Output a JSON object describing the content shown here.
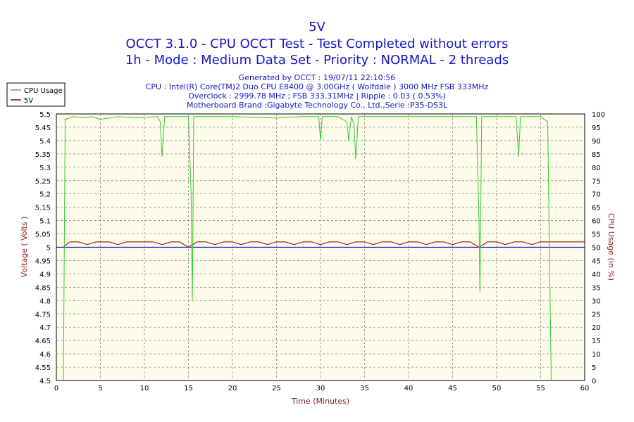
{
  "chart_data": {
    "type": "line",
    "title": "5V",
    "subtitle_1": "OCCT 3.1.0 - CPU OCCT Test - Test Completed without errors",
    "subtitle_2": "1h - Mode : Medium Data Set - Priority : NORMAL - 2 threads",
    "info": [
      "Generated by OCCT : 19/07/11 22:10:56",
      "CPU : Intel(R) Core(TM)2 Duo CPU E8400 @ 3.00GHz ( Wolfdale ) 3000 MHz FSB 333MHz",
      "Overclock : 2999.78 MHz ; FSB 333.31MHz | Ripple : 0.03 ( 0.53%)",
      "Motherboard Brand :Gigabyte Technology Co., Ltd.,Serie :P35-DS3L"
    ],
    "xlabel": "Time (Minutes)",
    "ylabel_left": "Voltage ( Volts )",
    "ylabel_right": "CPU Usage (in %)",
    "xlim": [
      0,
      60
    ],
    "ylim_left": [
      4.5,
      5.5
    ],
    "ylim_right": [
      0,
      100
    ],
    "x_ticks": [
      "0",
      "5",
      "10",
      "15",
      "20",
      "25",
      "30",
      "35",
      "40",
      "45",
      "50",
      "55",
      "60"
    ],
    "y_left_ticks": [
      "4.5",
      "4.55",
      "4.6",
      "4.65",
      "4.7",
      "4.75",
      "4.8",
      "4.85",
      "4.9",
      "4.95",
      "5",
      "5.05",
      "5.1",
      "5.15",
      "5.2",
      "5.25",
      "5.3",
      "5.35",
      "5.4",
      "5.45",
      "5.5"
    ],
    "y_right_ticks": [
      "0",
      "5",
      "10",
      "15",
      "20",
      "25",
      "30",
      "35",
      "40",
      "45",
      "50",
      "55",
      "60",
      "65",
      "70",
      "75",
      "80",
      "85",
      "90",
      "95",
      "100"
    ],
    "grid": true,
    "legend_position": "top-left",
    "colors": {
      "cpu": "#33cc33",
      "voltage": "#8b0000",
      "reference": "#0000cc",
      "plot_bg": "#fdfbe9",
      "title": "#1515c8",
      "axis_label": "#8b1a1a"
    },
    "reference_line": {
      "value": 5.0
    },
    "series": [
      {
        "name": "CPU Usage",
        "axis": "right",
        "points": [
          [
            0.8,
            0
          ],
          [
            1.0,
            98
          ],
          [
            2,
            99
          ],
          [
            3,
            98.5
          ],
          [
            4,
            99
          ],
          [
            5,
            98
          ],
          [
            7,
            99
          ],
          [
            9,
            98.5
          ],
          [
            11.5,
            99
          ],
          [
            11.8,
            97
          ],
          [
            12.0,
            84
          ],
          [
            12.3,
            99
          ],
          [
            15,
            99
          ],
          [
            15.3,
            70
          ],
          [
            15.45,
            30
          ],
          [
            15.6,
            99
          ],
          [
            20,
            99
          ],
          [
            25,
            98.5
          ],
          [
            28,
            99
          ],
          [
            29.8,
            99
          ],
          [
            30.0,
            90
          ],
          [
            30.2,
            99
          ],
          [
            31,
            99
          ],
          [
            32,
            99
          ],
          [
            33.0,
            97
          ],
          [
            33.2,
            90
          ],
          [
            33.5,
            99
          ],
          [
            33.8,
            96
          ],
          [
            34.0,
            83
          ],
          [
            34.3,
            99
          ],
          [
            38,
            99
          ],
          [
            42,
            99
          ],
          [
            46,
            99
          ],
          [
            47.7,
            99
          ],
          [
            48.0,
            60
          ],
          [
            48.1,
            33
          ],
          [
            48.3,
            99
          ],
          [
            50,
            99
          ],
          [
            52.2,
            99
          ],
          [
            52.5,
            84
          ],
          [
            52.7,
            99
          ],
          [
            55,
            99
          ],
          [
            55.8,
            97
          ],
          [
            56.2,
            0
          ]
        ]
      },
      {
        "name": "5V",
        "axis": "left",
        "points": [
          [
            0.8,
            5.0
          ],
          [
            1.5,
            5.02
          ],
          [
            2.5,
            5.02
          ],
          [
            3.5,
            5.01
          ],
          [
            4.5,
            5.02
          ],
          [
            6,
            5.02
          ],
          [
            7,
            5.01
          ],
          [
            8,
            5.02
          ],
          [
            9,
            5.02
          ],
          [
            11,
            5.02
          ],
          [
            12,
            5.01
          ],
          [
            13,
            5.02
          ],
          [
            14,
            5.02
          ],
          [
            15,
            5.0
          ],
          [
            16,
            5.02
          ],
          [
            17,
            5.02
          ],
          [
            18,
            5.01
          ],
          [
            19,
            5.02
          ],
          [
            20,
            5.02
          ],
          [
            21,
            5.01
          ],
          [
            22,
            5.02
          ],
          [
            23,
            5.02
          ],
          [
            24,
            5.01
          ],
          [
            25,
            5.02
          ],
          [
            26,
            5.02
          ],
          [
            27,
            5.01
          ],
          [
            28,
            5.02
          ],
          [
            29,
            5.02
          ],
          [
            30,
            5.01
          ],
          [
            31,
            5.02
          ],
          [
            32,
            5.02
          ],
          [
            33,
            5.01
          ],
          [
            34,
            5.02
          ],
          [
            35,
            5.02
          ],
          [
            36,
            5.01
          ],
          [
            37,
            5.02
          ],
          [
            38,
            5.02
          ],
          [
            39,
            5.01
          ],
          [
            40,
            5.02
          ],
          [
            41,
            5.02
          ],
          [
            42,
            5.01
          ],
          [
            43,
            5.02
          ],
          [
            44,
            5.02
          ],
          [
            45,
            5.01
          ],
          [
            46,
            5.02
          ],
          [
            47,
            5.02
          ],
          [
            48,
            5.0
          ],
          [
            49,
            5.02
          ],
          [
            50,
            5.02
          ],
          [
            51,
            5.01
          ],
          [
            52,
            5.02
          ],
          [
            53,
            5.02
          ],
          [
            54,
            5.01
          ],
          [
            55,
            5.02
          ],
          [
            56,
            5.02
          ],
          [
            57,
            5.02
          ],
          [
            60,
            5.02
          ]
        ]
      }
    ]
  }
}
